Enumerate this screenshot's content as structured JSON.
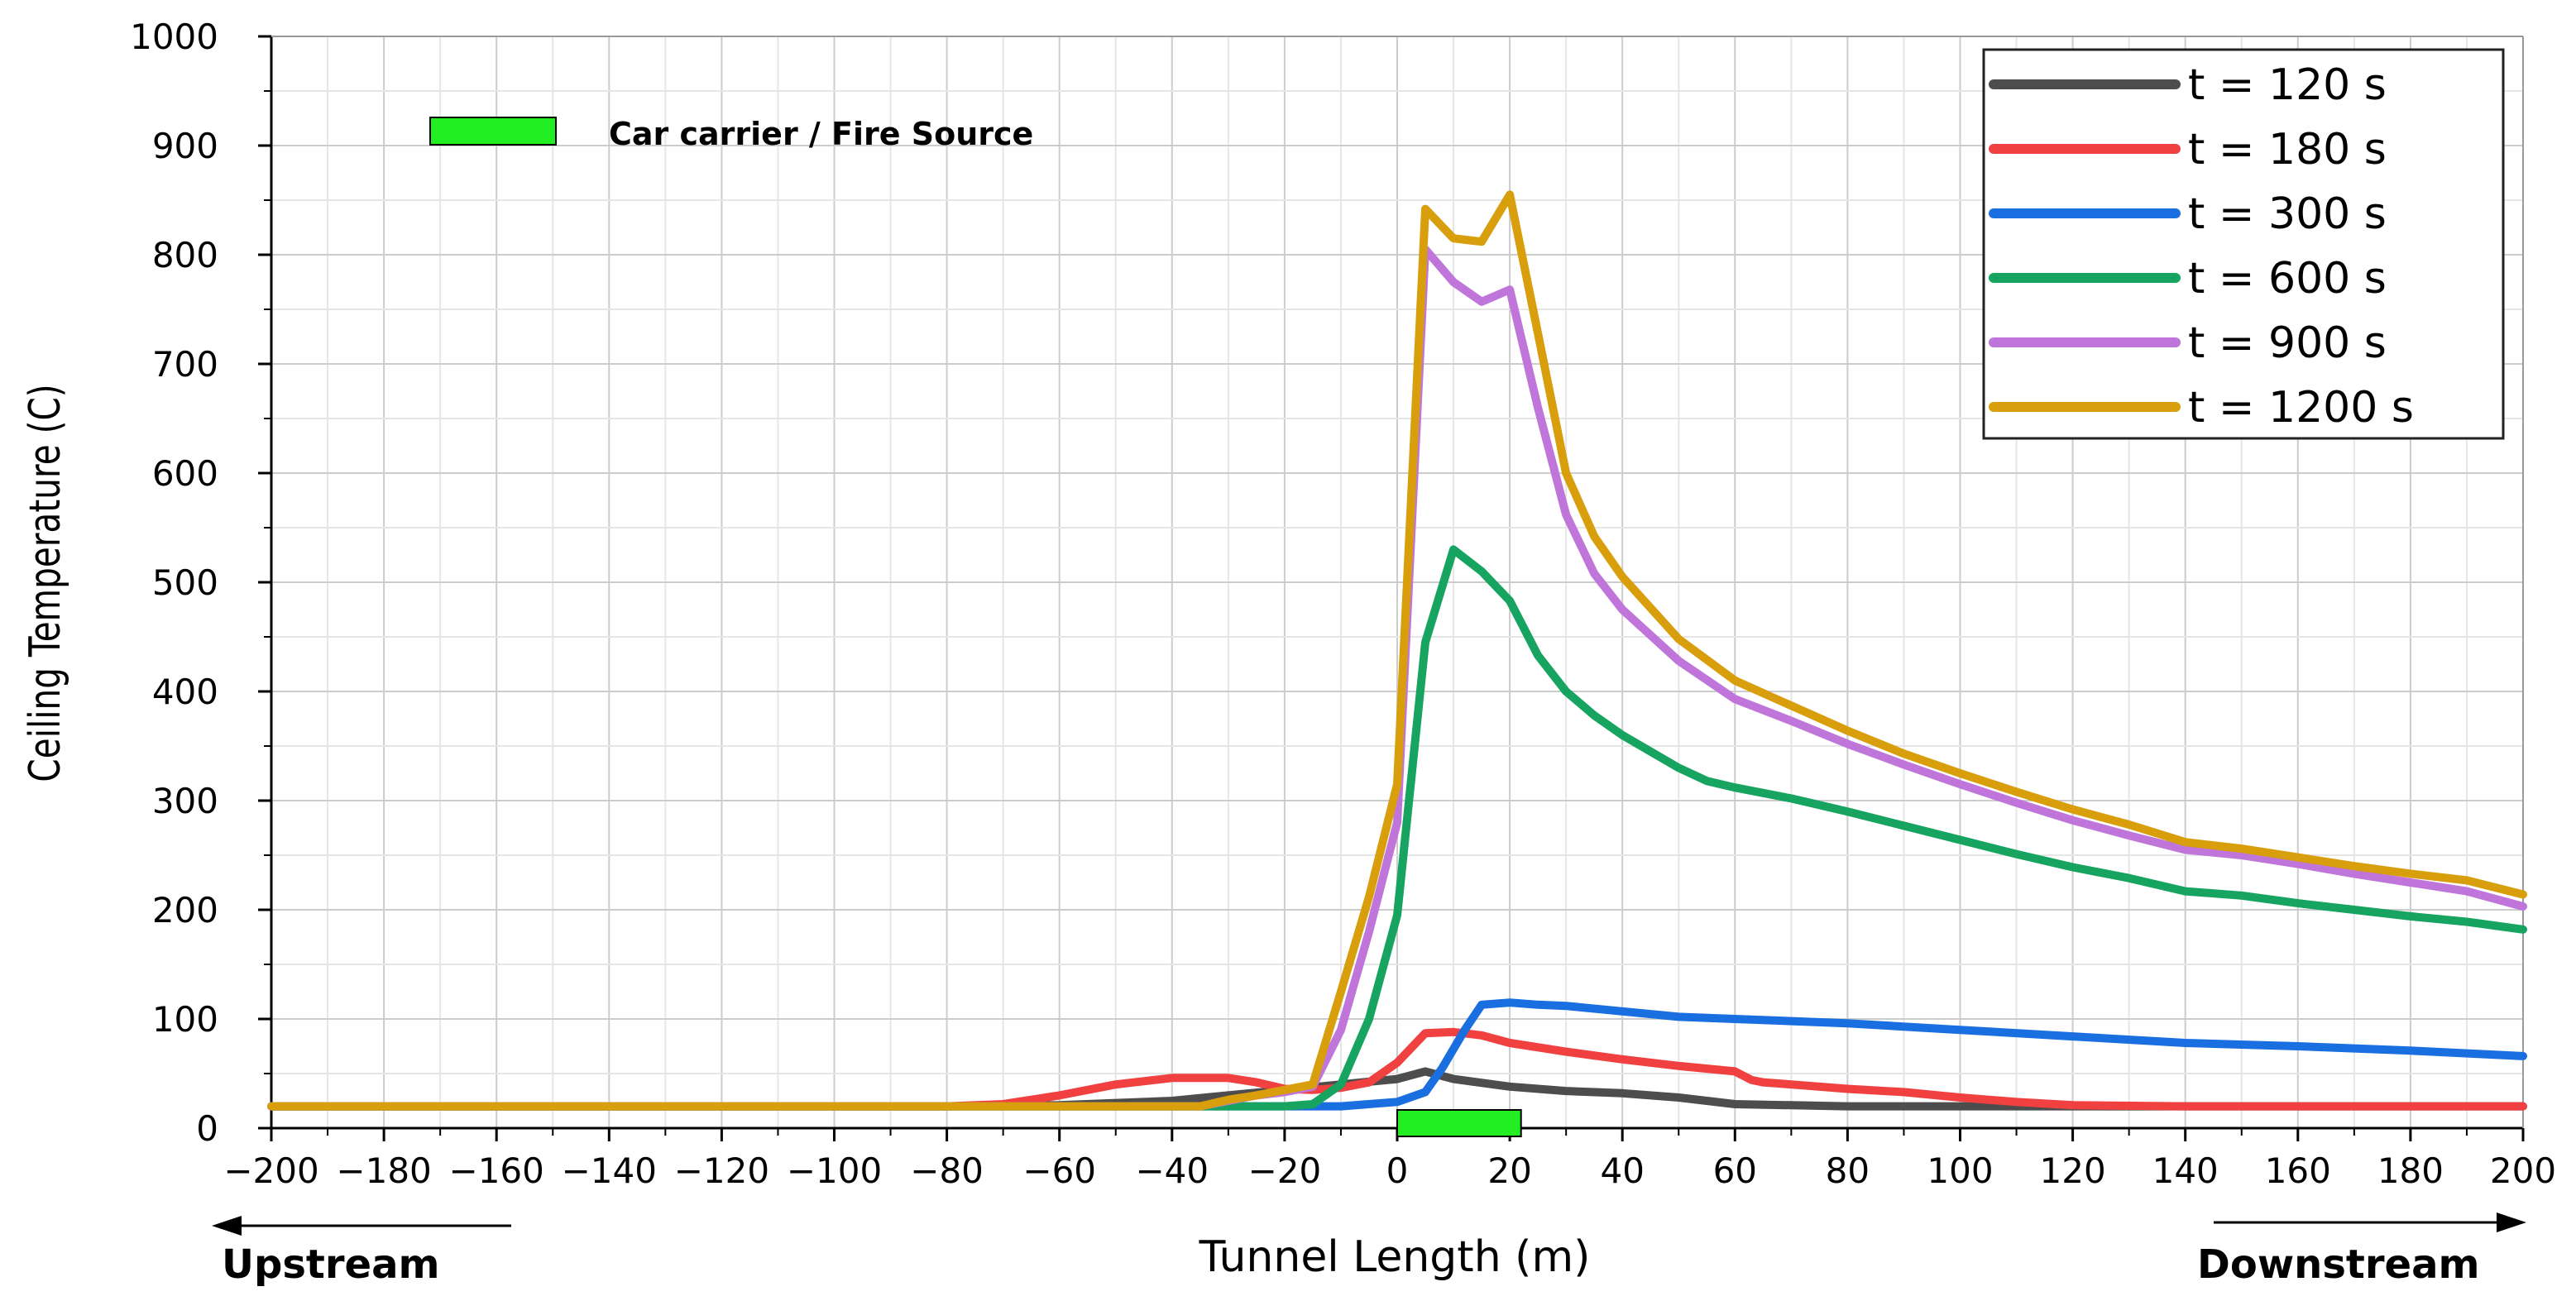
{
  "chart_data": {
    "type": "line",
    "xlabel": "Tunnel Length (m)",
    "ylabel": "Ceiling Temperature (C)",
    "xlim": [
      -200,
      200
    ],
    "ylim": [
      0,
      1000
    ],
    "xticks": [
      -200,
      -180,
      -160,
      -140,
      -120,
      -100,
      -80,
      -60,
      -40,
      -20,
      0,
      20,
      40,
      60,
      80,
      100,
      120,
      140,
      160,
      180,
      200
    ],
    "xtick_labels": [
      "−200",
      "−180",
      "−160",
      "−140",
      "−120",
      "−100",
      "−80",
      "−60",
      "−40",
      "−20",
      "0",
      "20",
      "40",
      "60",
      "80",
      "100",
      "120",
      "140",
      "160",
      "180",
      "200"
    ],
    "yticks": [
      0,
      100,
      200,
      300,
      400,
      500,
      600,
      700,
      800,
      900,
      1000
    ],
    "grid": true,
    "legend_position": "top-right",
    "series": [
      {
        "name": "t = 120 s",
        "color": "#4d4d4d",
        "x": [
          -200,
          -80,
          -60,
          -40,
          -30,
          -20,
          -10,
          0,
          5,
          10,
          20,
          30,
          40,
          50,
          60,
          80,
          100,
          120,
          140,
          160,
          180,
          200
        ],
        "y": [
          20,
          20,
          21,
          25,
          30,
          35,
          40,
          45,
          52,
          45,
          38,
          34,
          32,
          28,
          22,
          20,
          20,
          20,
          20,
          20,
          20,
          20
        ]
      },
      {
        "name": "t = 180 s",
        "color": "#f04040",
        "x": [
          -200,
          -80,
          -70,
          -60,
          -50,
          -40,
          -30,
          -25,
          -20,
          -15,
          -10,
          -5,
          0,
          5,
          10,
          15,
          20,
          30,
          40,
          50,
          60,
          63,
          65,
          70,
          80,
          90,
          100,
          110,
          120,
          140,
          160,
          180,
          200
        ],
        "y": [
          20,
          20,
          22,
          30,
          40,
          46,
          46,
          42,
          36,
          35,
          37,
          42,
          60,
          87,
          88,
          85,
          78,
          70,
          63,
          57,
          52,
          44,
          42,
          40,
          36,
          33,
          28,
          24,
          21,
          20,
          20,
          20,
          20
        ]
      },
      {
        "name": "t = 300 s",
        "color": "#1a6fe0",
        "x": [
          -200,
          -20,
          -10,
          0,
          5,
          8,
          12,
          15,
          20,
          25,
          30,
          40,
          50,
          60,
          70,
          80,
          100,
          120,
          140,
          160,
          180,
          200
        ],
        "y": [
          20,
          20,
          20,
          24,
          33,
          55,
          90,
          113,
          115,
          113,
          112,
          107,
          102,
          100,
          98,
          96,
          90,
          84,
          78,
          75,
          71,
          66
        ]
      },
      {
        "name": "t = 600 s",
        "color": "#17a460",
        "x": [
          -200,
          -20,
          -15,
          -10,
          -5,
          0,
          5,
          10,
          15,
          20,
          25,
          30,
          35,
          40,
          50,
          55,
          60,
          70,
          80,
          90,
          100,
          110,
          120,
          130,
          140,
          150,
          160,
          170,
          180,
          190,
          200
        ],
        "y": [
          20,
          20,
          22,
          40,
          100,
          195,
          445,
          530,
          510,
          483,
          433,
          400,
          378,
          360,
          330,
          318,
          312,
          302,
          290,
          277,
          264,
          251,
          239,
          229,
          217,
          213,
          206,
          200,
          194,
          189,
          182
        ]
      },
      {
        "name": "t = 900 s",
        "color": "#bf75d9",
        "x": [
          -200,
          -35,
          -30,
          -25,
          -20,
          -15,
          -10,
          -5,
          0,
          5,
          10,
          15,
          20,
          25,
          30,
          35,
          40,
          50,
          60,
          70,
          80,
          90,
          100,
          110,
          120,
          130,
          140,
          150,
          160,
          170,
          180,
          190,
          200
        ],
        "y": [
          20,
          20,
          25,
          30,
          33,
          38,
          90,
          180,
          280,
          805,
          775,
          757,
          768,
          660,
          562,
          508,
          475,
          428,
          393,
          373,
          352,
          333,
          315,
          298,
          282,
          268,
          255,
          250,
          242,
          233,
          225,
          217,
          203
        ]
      },
      {
        "name": "t = 1200 s",
        "color": "#d89e0c",
        "x": [
          -200,
          -35,
          -30,
          -25,
          -20,
          -15,
          -10,
          -5,
          0,
          5,
          10,
          15,
          20,
          25,
          30,
          35,
          40,
          50,
          60,
          70,
          80,
          90,
          100,
          110,
          120,
          130,
          140,
          150,
          160,
          170,
          180,
          190,
          200
        ],
        "y": [
          20,
          20,
          26,
          30,
          35,
          40,
          125,
          212,
          315,
          842,
          815,
          812,
          855,
          728,
          600,
          542,
          505,
          448,
          410,
          387,
          364,
          343,
          325,
          308,
          292,
          278,
          262,
          256,
          248,
          240,
          233,
          227,
          214
        ]
      }
    ],
    "annotation": {
      "label": "Car carrier / Fire Source",
      "color": "#22ee22",
      "x_start": 0,
      "x_end": 22
    }
  },
  "direction_labels": {
    "left": "Upstream",
    "right": "Downstream"
  }
}
